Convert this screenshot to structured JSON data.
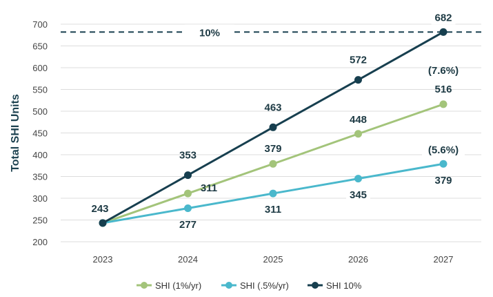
{
  "chart_data": {
    "type": "line",
    "title": "",
    "xlabel": "",
    "ylabel": "Total SHI Units",
    "categories": [
      "2023",
      "2024",
      "2025",
      "2026",
      "2027"
    ],
    "ylim": [
      200,
      700
    ],
    "yticks": [
      200,
      250,
      300,
      350,
      400,
      450,
      500,
      550,
      600,
      650,
      700
    ],
    "grid": "horizontal",
    "legend_position": "bottom",
    "series": [
      {
        "name": "SHI (1%/yr)",
        "color": "#a3c47a",
        "values": [
          243,
          311,
          379,
          448,
          516
        ],
        "labels": [
          "243",
          "311",
          "379",
          "448",
          "516"
        ]
      },
      {
        "name": "SHI (.5%/yr)",
        "color": "#4ab8cc",
        "values": [
          243,
          277,
          311,
          345,
          379
        ],
        "labels": [
          "",
          "277",
          "311",
          "345",
          "379"
        ]
      },
      {
        "name": "SHI 10%",
        "color": "#173f4f",
        "values": [
          243,
          353,
          463,
          572,
          682
        ],
        "labels": [
          "",
          "353",
          "463",
          "572",
          "682"
        ]
      }
    ],
    "reference_line": {
      "value": 682,
      "label": "10%",
      "style": "dashed",
      "color": "#173f4f"
    },
    "annotations": [
      {
        "text": "(7.6%)",
        "series": "SHI (1%/yr)",
        "category": "2027"
      },
      {
        "text": "(5.6%)",
        "series": "SHI (.5%/yr)",
        "category": "2027"
      }
    ]
  }
}
